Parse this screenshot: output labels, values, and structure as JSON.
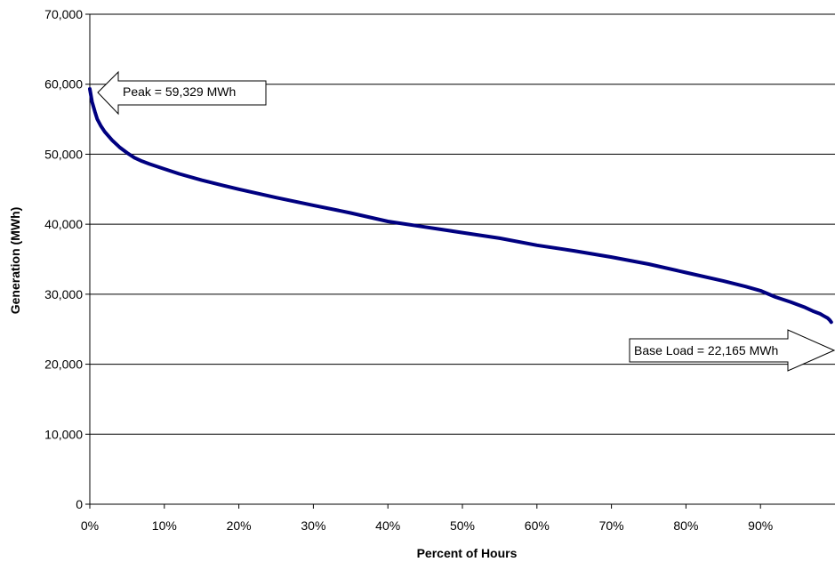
{
  "chart_data": {
    "type": "line",
    "title": "",
    "xlabel": "Percent of Hours",
    "ylabel": "Generation (MWh)",
    "xlim": [
      0,
      100
    ],
    "ylim": [
      0,
      70000
    ],
    "x_ticks": [
      "0%",
      "10%",
      "20%",
      "30%",
      "40%",
      "50%",
      "60%",
      "70%",
      "80%",
      "90%"
    ],
    "y_ticks": [
      "0",
      "10,000",
      "20,000",
      "30,000",
      "40,000",
      "50,000",
      "60,000",
      "70,000"
    ],
    "grid": "horizontal",
    "colors": {
      "series": "#000080",
      "grid": "#000000"
    },
    "series": [
      {
        "x": [
          0,
          0.3,
          0.7,
          1,
          1.5,
          2,
          3,
          4,
          5,
          6,
          7,
          8,
          10,
          12,
          15,
          18,
          20,
          25,
          30,
          35,
          40,
          45,
          50,
          55,
          60,
          65,
          70,
          75,
          80,
          85,
          88,
          90,
          92,
          94,
          96,
          97,
          98,
          98.5,
          99,
          99.3,
          99.5
        ],
        "values": [
          59329,
          57500,
          56000,
          55000,
          54000,
          53200,
          52000,
          51000,
          50200,
          49500,
          49000,
          48600,
          47900,
          47200,
          46300,
          45500,
          45000,
          43800,
          42700,
          41600,
          40400,
          39600,
          38800,
          38000,
          37000,
          36200,
          35300,
          34300,
          33100,
          31900,
          31100,
          30500,
          29600,
          28900,
          28100,
          27600,
          27200,
          26900,
          26600,
          26300,
          26000
        ]
      }
    ],
    "annotations": [
      {
        "text": "Peak = 59,329 MWh",
        "x": 0,
        "y": 59329,
        "arrow": "left"
      },
      {
        "text": "Base Load = 22,165 MWh",
        "x": 100,
        "y": 22165,
        "arrow": "right"
      }
    ]
  }
}
